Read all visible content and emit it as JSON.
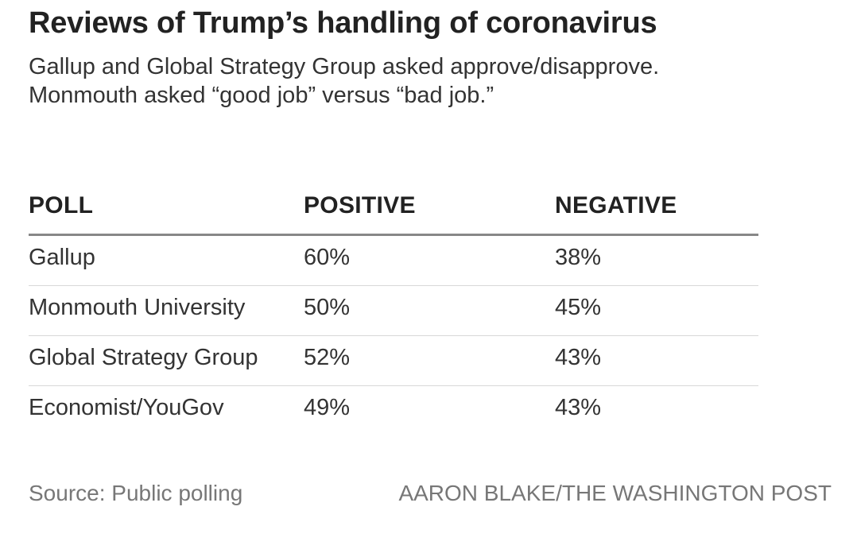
{
  "chart_data": {
    "type": "table",
    "title": "Reviews of Trump’s handling of coronavirus",
    "subtitle": [
      "Gallup and Global Strategy Group asked approve/disapprove.",
      "Monmouth asked “good job” versus “bad job.”"
    ],
    "columns": [
      "POLL",
      "POSITIVE",
      "NEGATIVE"
    ],
    "rows": [
      {
        "poll": "Gallup",
        "positive": "60%",
        "negative": "38%"
      },
      {
        "poll": "Monmouth University",
        "positive": "50%",
        "negative": "45%"
      },
      {
        "poll": "Global Strategy Group",
        "positive": "52%",
        "negative": "43%"
      },
      {
        "poll": "Economist/YouGov",
        "positive": "49%",
        "negative": "43%"
      }
    ],
    "source": "Source: Public polling",
    "credit": "AARON BLAKE/THE WASHINGTON POST"
  }
}
